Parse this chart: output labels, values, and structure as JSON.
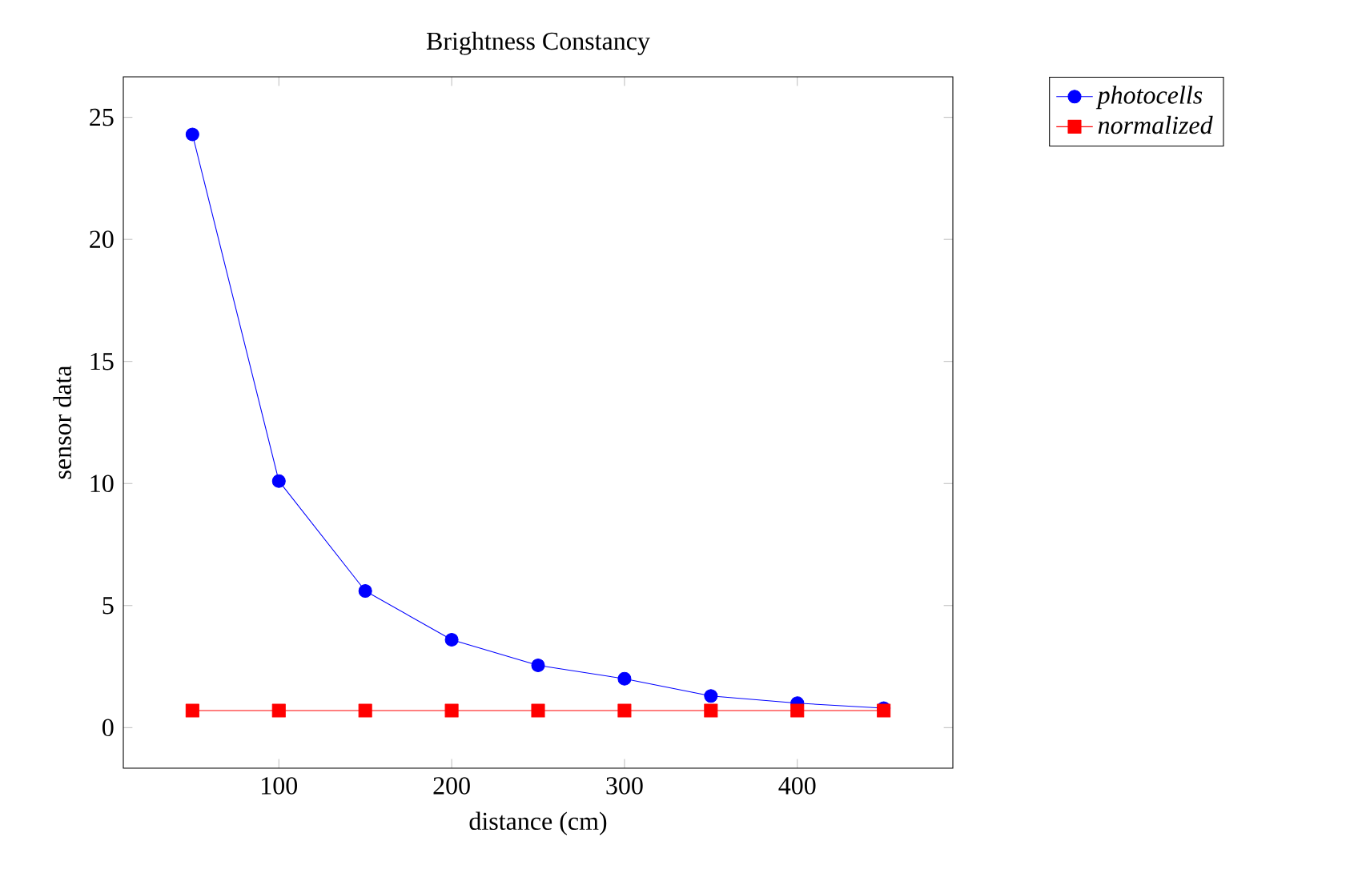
{
  "chart_data": {
    "type": "line",
    "title": "Brightness Constancy",
    "xlabel": "distance (cm)",
    "ylabel": "sensor data",
    "x": [
      50,
      100,
      150,
      200,
      250,
      300,
      350,
      400,
      450
    ],
    "series": [
      {
        "name": "photocells",
        "color": "#0000ff",
        "marker": "circle",
        "values": [
          24.3,
          10.1,
          5.6,
          3.6,
          2.55,
          2.0,
          1.3,
          1.0,
          0.8
        ]
      },
      {
        "name": "normalized",
        "color": "#ff0000",
        "marker": "square",
        "values": [
          0.7,
          0.7,
          0.7,
          0.7,
          0.7,
          0.7,
          0.7,
          0.7,
          0.7
        ]
      }
    ],
    "xlim": [
      10,
      490
    ],
    "ylim": [
      -1.66,
      26.66
    ],
    "xticks": [
      100,
      200,
      300,
      400
    ],
    "yticks": [
      0,
      5,
      10,
      15,
      20,
      25
    ],
    "legend": "top right",
    "grid": false
  }
}
